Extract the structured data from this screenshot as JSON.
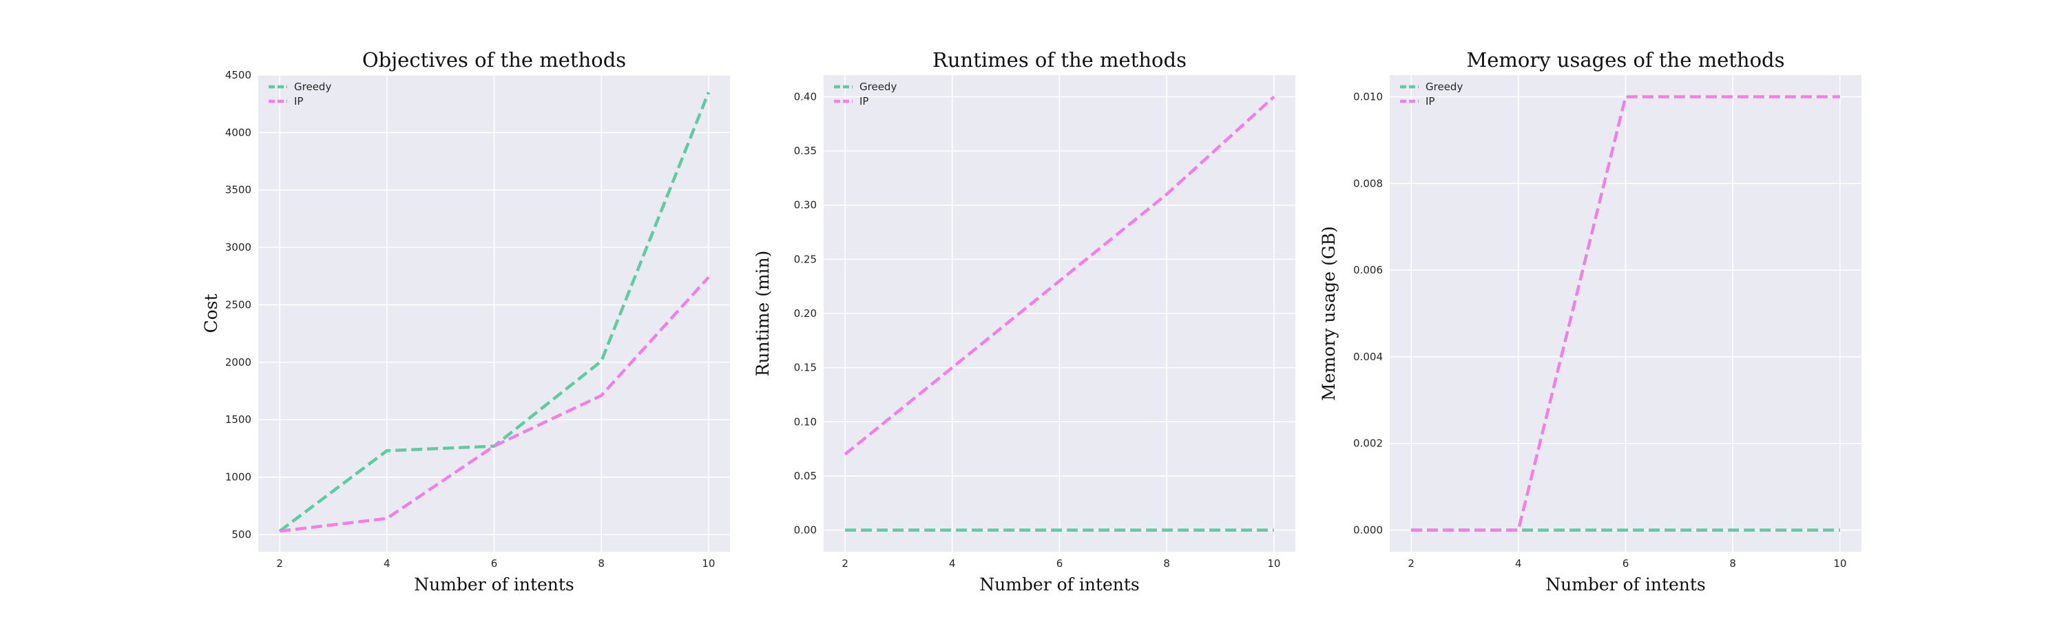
{
  "figure": {
    "colors": {
      "background": "#eaeaf2",
      "grid": "#ffffff",
      "greedy": "#5ecba1",
      "ip": "#f07fe6"
    }
  },
  "chart_data": [
    {
      "type": "line",
      "title": "Objectives of the methods",
      "xlabel": "Number of intents",
      "ylabel": "Cost",
      "x": [
        2,
        4,
        6,
        8,
        10
      ],
      "xlim": [
        1.6,
        10.4
      ],
      "ylim": [
        350,
        4500
      ],
      "xticks": [
        2,
        4,
        6,
        8,
        10
      ],
      "yticks": [
        500,
        1000,
        1500,
        2000,
        2500,
        3000,
        3500,
        4000,
        4500
      ],
      "grid": true,
      "legend": "top-left",
      "series": [
        {
          "name": "Greedy",
          "values": [
            530,
            1230,
            1270,
            2010,
            4350
          ]
        },
        {
          "name": "IP",
          "values": [
            530,
            640,
            1270,
            1710,
            2740
          ]
        }
      ]
    },
    {
      "type": "line",
      "title": "Runtimes of the methods",
      "xlabel": "Number of intents",
      "ylabel": "Runtime (min)",
      "x": [
        2,
        4,
        6,
        8,
        10
      ],
      "xlim": [
        1.6,
        10.4
      ],
      "ylim": [
        -0.02,
        0.42
      ],
      "xticks": [
        2,
        4,
        6,
        8,
        10
      ],
      "yticks": [
        0.0,
        0.05,
        0.1,
        0.15,
        0.2,
        0.25,
        0.3,
        0.35,
        0.4
      ],
      "ytick_labels": [
        "0.00",
        "0.05",
        "0.10",
        "0.15",
        "0.20",
        "0.25",
        "0.30",
        "0.35",
        "0.40"
      ],
      "grid": true,
      "legend": "top-left",
      "series": [
        {
          "name": "Greedy",
          "values": [
            0.0,
            0.0,
            0.0,
            0.0,
            0.0
          ]
        },
        {
          "name": "IP",
          "values": [
            0.07,
            0.15,
            0.23,
            0.31,
            0.4
          ]
        }
      ]
    },
    {
      "type": "line",
      "title": "Memory usages of the methods",
      "xlabel": "Number of intents",
      "ylabel": "Memory usage (GB)",
      "x": [
        2,
        4,
        6,
        8,
        10
      ],
      "xlim": [
        1.6,
        10.4
      ],
      "ylim": [
        -0.0005,
        0.0105
      ],
      "xticks": [
        2,
        4,
        6,
        8,
        10
      ],
      "yticks": [
        0.0,
        0.002,
        0.004,
        0.006,
        0.008,
        0.01
      ],
      "ytick_labels": [
        "0.000",
        "0.002",
        "0.004",
        "0.006",
        "0.008",
        "0.010"
      ],
      "grid": true,
      "legend": "top-left",
      "series": [
        {
          "name": "Greedy",
          "values": [
            0.0,
            0.0,
            0.0,
            0.0,
            0.0
          ]
        },
        {
          "name": "IP",
          "values": [
            0.0,
            0.0,
            0.01,
            0.01,
            0.01
          ]
        }
      ]
    }
  ]
}
